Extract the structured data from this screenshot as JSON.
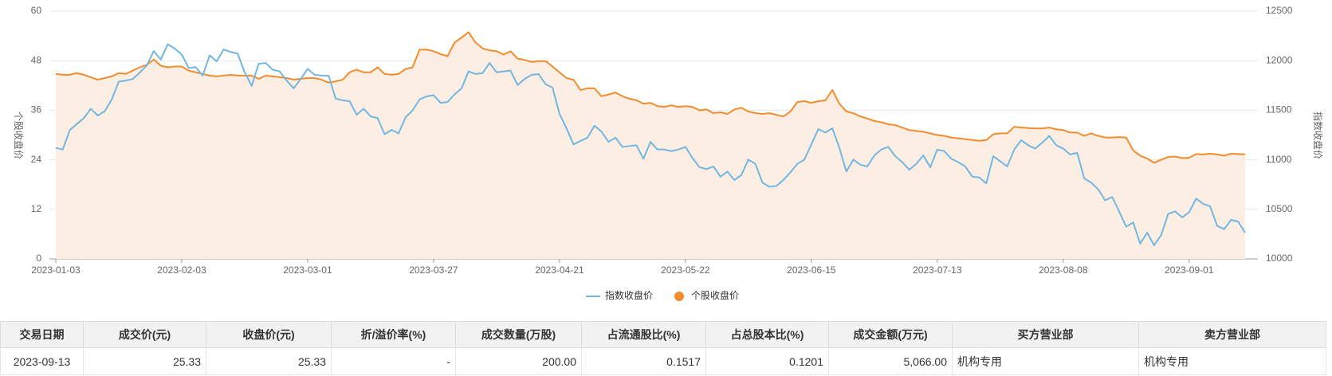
{
  "chart_data": {
    "type": "line",
    "categories": [
      "2023-01-03",
      null,
      null,
      null,
      null,
      null,
      null,
      null,
      null,
      null,
      null,
      null,
      null,
      null,
      null,
      null,
      null,
      null,
      "2023-02-03",
      null,
      null,
      null,
      null,
      null,
      null,
      null,
      null,
      null,
      null,
      null,
      null,
      null,
      null,
      null,
      null,
      null,
      "2023-03-01",
      null,
      null,
      null,
      null,
      null,
      null,
      null,
      null,
      null,
      null,
      null,
      null,
      null,
      null,
      null,
      null,
      null,
      "2023-03-27",
      null,
      null,
      null,
      null,
      null,
      null,
      null,
      null,
      null,
      null,
      null,
      null,
      null,
      null,
      null,
      null,
      null,
      "2023-04-21",
      null,
      null,
      null,
      null,
      null,
      null,
      null,
      null,
      null,
      null,
      null,
      null,
      null,
      null,
      null,
      null,
      null,
      "2023-05-22",
      null,
      null,
      null,
      null,
      null,
      null,
      null,
      null,
      null,
      null,
      null,
      null,
      null,
      null,
      null,
      null,
      null,
      "2023-06-15",
      null,
      null,
      null,
      null,
      null,
      null,
      null,
      null,
      null,
      null,
      null,
      null,
      null,
      null,
      null,
      null,
      null,
      "2023-07-13",
      null,
      null,
      null,
      null,
      null,
      null,
      null,
      null,
      null,
      null,
      null,
      null,
      null,
      null,
      null,
      null,
      null,
      "2023-08-08",
      null,
      null,
      null,
      null,
      null,
      null,
      null,
      null,
      null,
      null,
      null,
      null,
      null,
      null,
      null,
      null,
      null,
      "2023-09-01",
      null,
      null,
      null,
      null,
      null,
      null,
      null,
      null
    ],
    "series": [
      {
        "name": "指数收盘价",
        "color": "#72b6e2",
        "axis": "y2",
        "values": [
          11121,
          11104,
          11300,
          11360,
          11420,
          11515,
          11447,
          11490,
          11609,
          11789,
          11800,
          11815,
          11880,
          11952,
          12097,
          12012,
          12166,
          12123,
          12063,
          11926,
          11935,
          11849,
          12054,
          11994,
          12114,
          12089,
          12071,
          11883,
          11746,
          11969,
          11977,
          11909,
          11892,
          11800,
          11721,
          11815,
          11917,
          11857,
          11850,
          11849,
          11618,
          11600,
          11592,
          11455,
          11515,
          11438,
          11421,
          11258,
          11301,
          11267,
          11430,
          11498,
          11609,
          11640,
          11652,
          11575,
          11583,
          11660,
          11721,
          11892,
          11866,
          11874,
          11977,
          11883,
          11892,
          11900,
          11755,
          11815,
          11857,
          11866,
          11763,
          11729,
          11464,
          11318,
          11156,
          11190,
          11224,
          11344,
          11284,
          11181,
          11224,
          11130,
          11139,
          11147,
          11010,
          11181,
          11104,
          11104,
          11087,
          11104,
          11130,
          11019,
          10925,
          10907,
          10933,
          10830,
          10881,
          10796,
          10847,
          11002,
          10959,
          10770,
          10728,
          10736,
          10796,
          10873,
          10959,
          11002,
          11156,
          11310,
          11275,
          11318,
          11121,
          10881,
          11002,
          10950,
          10933,
          11044,
          11104,
          11130,
          11036,
          10976,
          10899,
          10959,
          11044,
          10925,
          11104,
          11087,
          11010,
          10976,
          10933,
          10830,
          10822,
          10762,
          11036,
          10985,
          10933,
          11104,
          11198,
          11147,
          11113,
          11173,
          11241,
          11147,
          11113,
          11053,
          11070,
          10813,
          10770,
          10702,
          10591,
          10625,
          10479,
          10325,
          10368,
          10154,
          10265,
          10137,
          10240,
          10454,
          10479,
          10419,
          10471,
          10608,
          10556,
          10531,
          10334,
          10300,
          10394,
          10377,
          10265
        ]
      },
      {
        "name": "个股收盘价",
        "color": "#f28c2c",
        "area_color": "#fdeee4",
        "values": [
          44.8,
          44.6,
          44.6,
          45.0,
          44.6,
          44.0,
          43.4,
          43.8,
          44.2,
          45.0,
          44.8,
          45.6,
          46.4,
          47.0,
          48.3,
          46.8,
          46.4,
          46.6,
          46.6,
          45.6,
          45.2,
          44.8,
          44.4,
          44.2,
          44.4,
          44.6,
          44.4,
          44.4,
          44.4,
          43.6,
          44.4,
          44.2,
          44.0,
          43.8,
          43.4,
          43.6,
          43.8,
          43.8,
          43.4,
          42.7,
          43.0,
          43.4,
          45.2,
          45.8,
          45.2,
          45.2,
          46.4,
          44.8,
          44.6,
          44.8,
          46.0,
          46.4,
          50.7,
          50.7,
          50.3,
          49.6,
          49.1,
          52.4,
          53.6,
          54.9,
          52.4,
          51.0,
          50.5,
          50.3,
          49.5,
          50.3,
          48.5,
          48.2,
          47.7,
          47.9,
          47.9,
          46.6,
          45.2,
          43.8,
          43.4,
          40.9,
          41.3,
          41.3,
          39.4,
          39.8,
          40.3,
          39.4,
          38.8,
          38.4,
          37.6,
          37.8,
          37.0,
          36.8,
          37.2,
          36.8,
          37.0,
          36.8,
          36.0,
          36.2,
          35.3,
          35.5,
          35.1,
          36.2,
          36.6,
          35.7,
          35.3,
          35.1,
          35.3,
          34.9,
          34.5,
          35.7,
          38.0,
          38.2,
          37.8,
          38.2,
          38.4,
          40.9,
          37.6,
          35.7,
          35.3,
          34.5,
          34.0,
          33.4,
          33.1,
          32.6,
          32.4,
          31.8,
          31.2,
          31.0,
          30.8,
          30.4,
          30.0,
          29.8,
          29.4,
          29.2,
          29.0,
          28.8,
          28.6,
          28.8,
          30.2,
          30.4,
          30.4,
          32.0,
          31.8,
          31.7,
          31.6,
          31.6,
          31.8,
          31.4,
          31.2,
          30.6,
          30.6,
          29.8,
          30.4,
          29.8,
          29.4,
          29.4,
          29.5,
          29.4,
          26.3,
          25.0,
          24.3,
          23.3,
          24.0,
          24.7,
          24.8,
          24.4,
          24.5,
          25.4,
          25.3,
          25.5,
          25.3,
          25.0,
          25.5,
          25.4,
          25.33
        ]
      }
    ],
    "ylabel": "个股收盘价",
    "y2label": "指数收盘价",
    "ylim": [
      0,
      60
    ],
    "yticks": [
      0,
      12,
      24,
      36,
      48,
      60
    ],
    "y2lim": [
      10000,
      12500
    ],
    "y2ticks": [
      10000,
      10500,
      11000,
      11500,
      12000,
      12500
    ],
    "grid": true,
    "legend": "bottom"
  },
  "table": {
    "headers": [
      "交易日期",
      "成交价(元)",
      "收盘价(元)",
      "折/溢价率(%)",
      "成交数量(万股)",
      "占流通股比(%)",
      "占总股本比(%)",
      "成交金额(万元)",
      "买方营业部",
      "卖方营业部"
    ],
    "rows": [
      [
        "2023-09-13",
        "25.33",
        "25.33",
        "-",
        "200.00",
        "0.1517",
        "0.1201",
        "5,066.00",
        "机构专用",
        "机构专用"
      ]
    ]
  }
}
